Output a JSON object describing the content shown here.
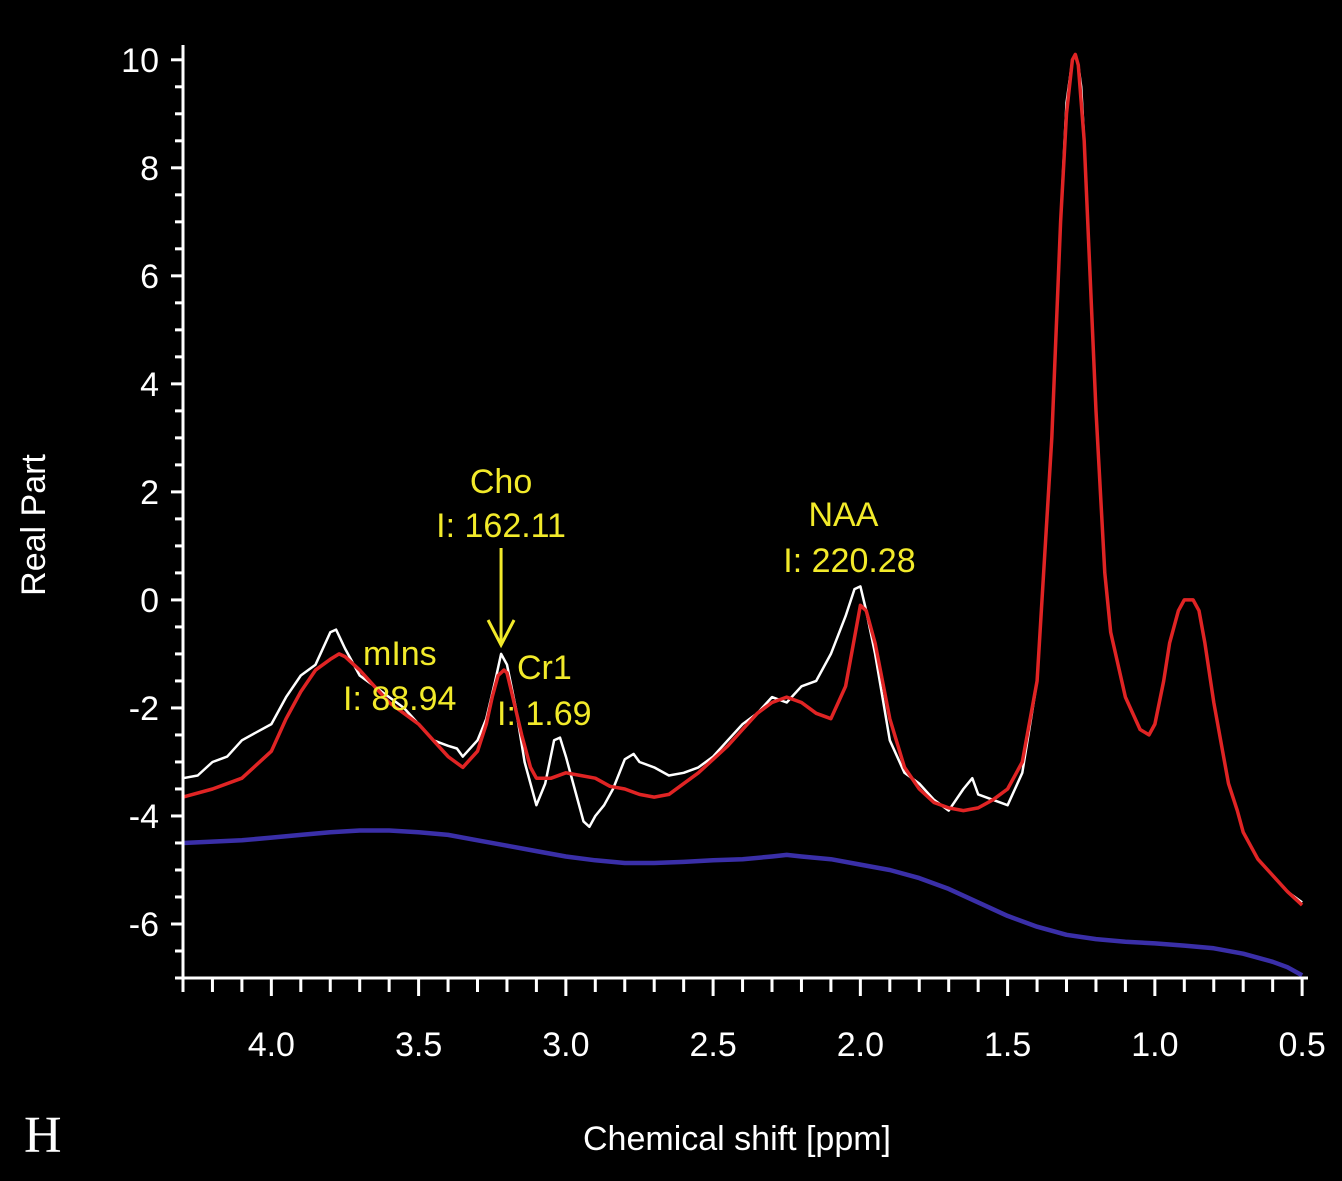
{
  "panel_label": "H",
  "chart_data": {
    "type": "line",
    "xlabel": "Chemical shift [ppm]",
    "ylabel": "Real Part",
    "xlim": [
      4.3,
      0.48
    ],
    "ylim": [
      -7,
      10.2
    ],
    "x_reversed": true,
    "grid": false,
    "x_ticks": [
      4.0,
      3.5,
      3.0,
      2.5,
      2.0,
      1.5,
      1.0,
      0.5
    ],
    "x_tick_labels": [
      "4.0",
      "3.5",
      "3.0",
      "2.5",
      "2.0",
      "1.5",
      "1.0",
      "0.5"
    ],
    "y_ticks": [
      10,
      8,
      6,
      4,
      2,
      0,
      -2,
      -4,
      -6
    ],
    "y_tick_labels": [
      "10",
      "8",
      "6",
      "4",
      "2",
      "0",
      "-2",
      "-4",
      "-6"
    ],
    "colors": {
      "measured": "#ffffff",
      "fit": "#e02424",
      "baseline": "#3a2fa8",
      "annotation": "#f2ea2a"
    },
    "series": [
      {
        "key": "measured",
        "x": [
          4.3,
          4.25,
          4.2,
          4.15,
          4.1,
          4.05,
          4.0,
          3.95,
          3.9,
          3.85,
          3.8,
          3.78,
          3.75,
          3.7,
          3.65,
          3.6,
          3.55,
          3.5,
          3.45,
          3.4,
          3.37,
          3.35,
          3.3,
          3.27,
          3.24,
          3.22,
          3.2,
          3.17,
          3.14,
          3.1,
          3.07,
          3.04,
          3.02,
          3.0,
          2.97,
          2.94,
          2.92,
          2.9,
          2.87,
          2.84,
          2.8,
          2.77,
          2.75,
          2.7,
          2.65,
          2.6,
          2.55,
          2.5,
          2.45,
          2.4,
          2.35,
          2.3,
          2.25,
          2.2,
          2.15,
          2.1,
          2.05,
          2.02,
          2.0,
          1.98,
          1.95,
          1.9,
          1.85,
          1.8,
          1.75,
          1.7,
          1.65,
          1.62,
          1.6,
          1.55,
          1.5,
          1.45,
          1.4,
          1.35,
          1.32,
          1.3,
          1.28,
          1.27,
          1.26,
          1.25,
          1.24,
          1.22,
          1.2,
          1.17,
          1.15,
          1.1,
          1.05,
          1.02,
          1.0,
          0.97,
          0.95,
          0.92,
          0.9,
          0.87,
          0.85,
          0.83,
          0.8,
          0.77,
          0.75,
          0.72,
          0.7,
          0.67,
          0.65,
          0.6,
          0.55,
          0.5
        ],
        "y": [
          -3.3,
          -3.25,
          -3.0,
          -2.9,
          -2.6,
          -2.45,
          -2.3,
          -1.8,
          -1.4,
          -1.2,
          -0.6,
          -0.55,
          -0.9,
          -1.4,
          -1.6,
          -1.8,
          -2.0,
          -2.3,
          -2.6,
          -2.7,
          -2.75,
          -2.9,
          -2.6,
          -2.2,
          -1.5,
          -1.0,
          -1.2,
          -2.0,
          -3.0,
          -3.8,
          -3.4,
          -2.6,
          -2.55,
          -2.9,
          -3.5,
          -4.1,
          -4.2,
          -4.0,
          -3.8,
          -3.5,
          -2.95,
          -2.85,
          -3.0,
          -3.1,
          -3.25,
          -3.2,
          -3.1,
          -2.9,
          -2.6,
          -2.3,
          -2.1,
          -1.8,
          -1.9,
          -1.6,
          -1.5,
          -1.0,
          -0.3,
          0.2,
          0.25,
          -0.2,
          -1.0,
          -2.6,
          -3.2,
          -3.4,
          -3.7,
          -3.9,
          -3.5,
          -3.3,
          -3.6,
          -3.7,
          -3.8,
          -3.2,
          -1.5,
          3.0,
          7.0,
          9.2,
          10.0,
          10.1,
          9.9,
          9.5,
          8.5,
          6.0,
          3.5,
          0.5,
          -0.6,
          -1.8,
          -2.4,
          -2.5,
          -2.3,
          -1.5,
          -0.8,
          -0.2,
          0.0,
          0.0,
          -0.2,
          -0.8,
          -1.9,
          -2.8,
          -3.4,
          -3.9,
          -4.3,
          -4.6,
          -4.8,
          -5.1,
          -5.4,
          -5.6
        ]
      },
      {
        "key": "fit",
        "x": [
          4.3,
          4.2,
          4.1,
          4.0,
          3.95,
          3.9,
          3.85,
          3.8,
          3.77,
          3.75,
          3.7,
          3.65,
          3.6,
          3.55,
          3.5,
          3.45,
          3.4,
          3.35,
          3.3,
          3.27,
          3.25,
          3.23,
          3.21,
          3.2,
          3.18,
          3.15,
          3.12,
          3.1,
          3.05,
          3.0,
          2.95,
          2.9,
          2.85,
          2.8,
          2.75,
          2.7,
          2.65,
          2.6,
          2.55,
          2.5,
          2.45,
          2.4,
          2.35,
          2.3,
          2.25,
          2.2,
          2.15,
          2.1,
          2.05,
          2.02,
          2.0,
          1.98,
          1.95,
          1.9,
          1.85,
          1.8,
          1.75,
          1.7,
          1.65,
          1.6,
          1.55,
          1.5,
          1.45,
          1.4,
          1.35,
          1.32,
          1.3,
          1.28,
          1.27,
          1.26,
          1.24,
          1.22,
          1.2,
          1.17,
          1.15,
          1.1,
          1.05,
          1.02,
          1.0,
          0.97,
          0.95,
          0.92,
          0.9,
          0.87,
          0.85,
          0.83,
          0.8,
          0.77,
          0.75,
          0.72,
          0.7,
          0.65,
          0.6,
          0.55,
          0.5
        ],
        "y": [
          -3.65,
          -3.5,
          -3.3,
          -2.8,
          -2.2,
          -1.7,
          -1.3,
          -1.1,
          -1.0,
          -1.05,
          -1.3,
          -1.6,
          -1.9,
          -2.1,
          -2.3,
          -2.6,
          -2.9,
          -3.1,
          -2.8,
          -2.3,
          -1.8,
          -1.4,
          -1.3,
          -1.35,
          -1.8,
          -2.5,
          -3.1,
          -3.3,
          -3.3,
          -3.2,
          -3.25,
          -3.3,
          -3.45,
          -3.5,
          -3.6,
          -3.65,
          -3.6,
          -3.4,
          -3.2,
          -2.95,
          -2.7,
          -2.4,
          -2.1,
          -1.9,
          -1.8,
          -1.9,
          -2.1,
          -2.2,
          -1.6,
          -0.7,
          -0.1,
          -0.2,
          -0.8,
          -2.2,
          -3.1,
          -3.5,
          -3.75,
          -3.85,
          -3.9,
          -3.85,
          -3.7,
          -3.5,
          -3.0,
          -1.5,
          3.0,
          7.0,
          9.0,
          10.0,
          10.1,
          9.9,
          8.5,
          6.0,
          3.5,
          0.5,
          -0.6,
          -1.8,
          -2.4,
          -2.5,
          -2.3,
          -1.5,
          -0.8,
          -0.2,
          0.0,
          0.0,
          -0.2,
          -0.8,
          -1.9,
          -2.8,
          -3.4,
          -3.9,
          -4.3,
          -4.8,
          -5.1,
          -5.4,
          -5.65
        ]
      },
      {
        "key": "baseline",
        "x": [
          4.3,
          4.1,
          4.0,
          3.9,
          3.8,
          3.7,
          3.6,
          3.5,
          3.4,
          3.3,
          3.2,
          3.1,
          3.0,
          2.9,
          2.8,
          2.7,
          2.6,
          2.5,
          2.4,
          2.3,
          2.25,
          2.2,
          2.1,
          2.0,
          1.9,
          1.8,
          1.7,
          1.6,
          1.5,
          1.4,
          1.3,
          1.2,
          1.1,
          1.0,
          0.9,
          0.8,
          0.7,
          0.6,
          0.55,
          0.5
        ],
        "y": [
          -4.5,
          -4.45,
          -4.4,
          -4.35,
          -4.3,
          -4.27,
          -4.27,
          -4.3,
          -4.35,
          -4.45,
          -4.55,
          -4.65,
          -4.75,
          -4.82,
          -4.87,
          -4.87,
          -4.85,
          -4.82,
          -4.8,
          -4.75,
          -4.72,
          -4.75,
          -4.8,
          -4.9,
          -5.0,
          -5.15,
          -5.35,
          -5.6,
          -5.85,
          -6.05,
          -6.2,
          -6.28,
          -6.33,
          -6.36,
          -6.4,
          -6.45,
          -6.55,
          -6.7,
          -6.8,
          -6.95
        ]
      }
    ],
    "annotations": [
      {
        "name": "cho",
        "label": "Cho",
        "value": "I: 162.11",
        "x": 3.22,
        "arrow": true
      },
      {
        "name": "mins",
        "label": "mIns",
        "value": "I: 88.94",
        "x": 3.5
      },
      {
        "name": "cr1",
        "label": "Cr1",
        "value": "I: 1.69",
        "x": 3.1
      },
      {
        "name": "naa",
        "label": "NAA",
        "value": "I: 220.28",
        "x": 2.02
      }
    ]
  }
}
